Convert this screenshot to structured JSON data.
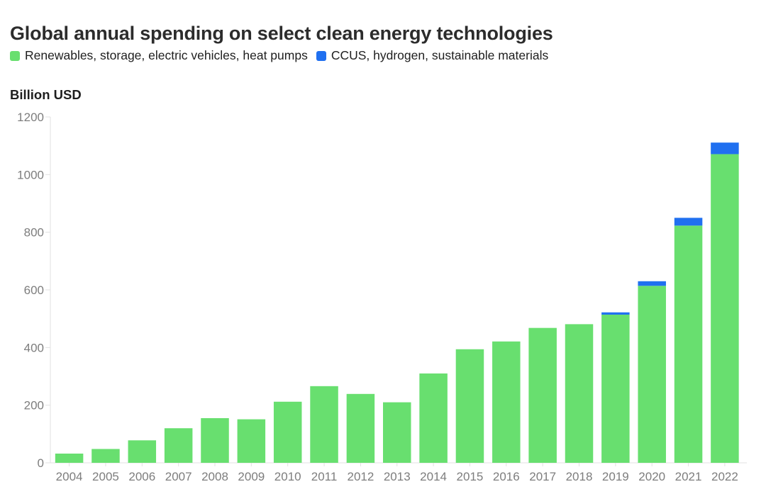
{
  "header": {
    "title": "Global annual spending on select clean energy technologies"
  },
  "legend": {
    "items": [
      {
        "label": "Renewables, storage, electric vehicles, heat pumps",
        "color": "#68DF6F"
      },
      {
        "label": "CCUS, hydrogen, sustainable materials",
        "color": "#2070F0"
      }
    ]
  },
  "y_axis": {
    "title": "Billion USD"
  },
  "chart_data": {
    "type": "bar",
    "stacked": true,
    "title": "Global annual spending on select clean energy technologies",
    "ylabel": "Billion USD",
    "xlabel": "",
    "categories": [
      "2004",
      "2005",
      "2006",
      "2007",
      "2008",
      "2009",
      "2010",
      "2011",
      "2012",
      "2013",
      "2014",
      "2015",
      "2016",
      "2017",
      "2018",
      "2019",
      "2020",
      "2021",
      "2022"
    ],
    "series": [
      {
        "name": "Renewables, storage, electric vehicles, heat pumps",
        "color": "#68DF6F",
        "values": [
          32,
          48,
          78,
          120,
          155,
          151,
          212,
          266,
          239,
          210,
          310,
          394,
          421,
          468,
          481,
          514,
          614,
          823,
          1071
        ]
      },
      {
        "name": "CCUS, hydrogen, sustainable materials",
        "color": "#2070F0",
        "values": [
          0,
          0,
          0,
          0,
          0,
          0,
          0,
          0,
          0,
          0,
          0,
          0,
          0,
          0,
          0,
          8,
          16,
          27,
          40
        ]
      }
    ],
    "totals": [
      32,
      48,
      78,
      120,
      155,
      151,
      212,
      266,
      239,
      210,
      310,
      394,
      421,
      468,
      481,
      522,
      630,
      850,
      1111
    ],
    "ylim": [
      0,
      1200
    ],
    "yticks": [
      0,
      200,
      400,
      600,
      800,
      1000,
      1200
    ],
    "grid": false,
    "legend_position": "top",
    "axis_color": "#e1e1e1",
    "tick_label_color": "#7d7d7d"
  }
}
